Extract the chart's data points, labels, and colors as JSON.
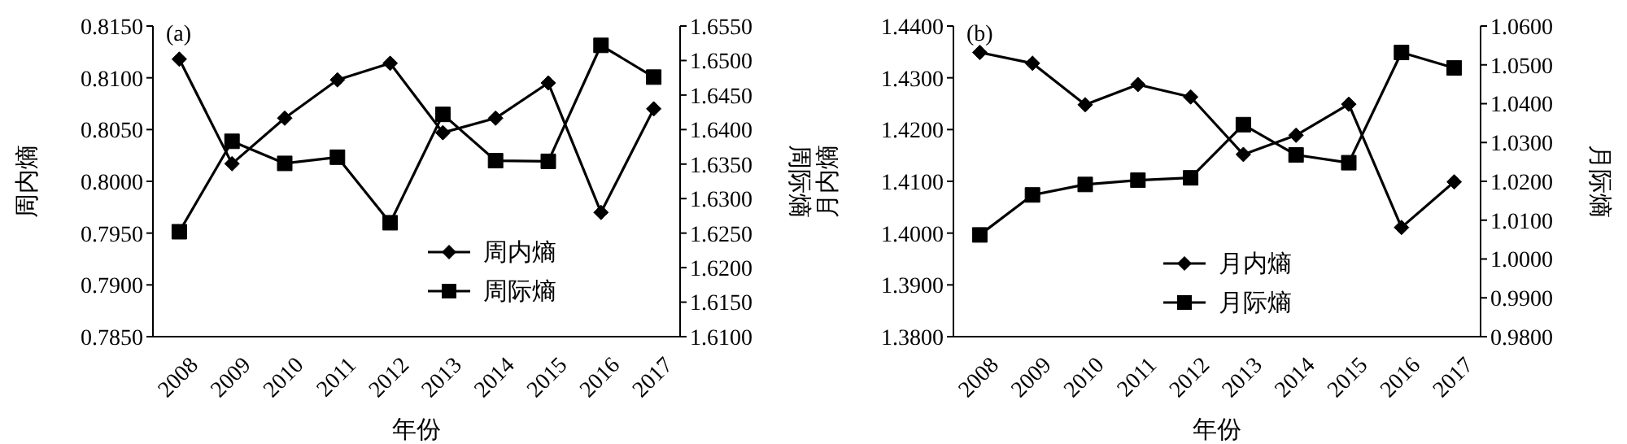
{
  "chart_data": [
    {
      "type": "line",
      "annotations": [
        "(a)"
      ],
      "xlabel": "年份",
      "ylabel": "周内熵",
      "y2label": "周际熵",
      "categories": [
        "2008",
        "2009",
        "2010",
        "2011",
        "2012",
        "2013",
        "2014",
        "2015",
        "2016",
        "2017"
      ],
      "series": [
        {
          "name": "周内熵",
          "color": "#000000",
          "marker": "diamond",
          "values": [
            0.8118,
            0.8017,
            0.8061,
            0.8098,
            0.8114,
            0.8047,
            0.8061,
            0.8095,
            0.797,
            0.807
          ]
        },
        {
          "name": "周际熵",
          "color": "#000000",
          "marker": "square",
          "axis": "y2",
          "values": [
            1.6252,
            1.6383,
            1.6351,
            1.636,
            1.6265,
            1.6422,
            1.6355,
            1.6354,
            1.6522,
            1.6476
          ]
        }
      ],
      "ylim": [
        0.785,
        0.815
      ],
      "yticks": [
        {
          "value": 0.785,
          "label": "0.7850"
        },
        {
          "value": 0.79,
          "label": "0.7900"
        },
        {
          "value": 0.795,
          "label": "0.7950"
        },
        {
          "value": 0.8,
          "label": "0.8000"
        },
        {
          "value": 0.805,
          "label": "0.8050"
        },
        {
          "value": 0.81,
          "label": "0.8100"
        },
        {
          "value": 0.815,
          "label": "0.8150"
        }
      ],
      "y2lim": [
        1.61,
        1.655
      ],
      "y2ticks": [
        {
          "value": 1.61,
          "label": "1.6100"
        },
        {
          "value": 1.615,
          "label": "1.6150"
        },
        {
          "value": 1.62,
          "label": "1.6200"
        },
        {
          "value": 1.625,
          "label": "1.6250"
        },
        {
          "value": 1.63,
          "label": "1.6300"
        },
        {
          "value": 1.635,
          "label": "1.6350"
        },
        {
          "value": 1.64,
          "label": "1.6400"
        },
        {
          "value": 1.645,
          "label": "1.6450"
        },
        {
          "value": 1.65,
          "label": "1.6500"
        },
        {
          "value": 1.655,
          "label": "1.6550"
        }
      ],
      "grid": false,
      "legend": "bottom right"
    },
    {
      "type": "line",
      "annotations": [
        "(b)"
      ],
      "xlabel": "年份",
      "ylabel": "月内熵",
      "y2label": "月际熵",
      "categories": [
        "2008",
        "2009",
        "2010",
        "2011",
        "2012",
        "2013",
        "2014",
        "2015",
        "2016",
        "2017"
      ],
      "series": [
        {
          "name": "月内熵",
          "color": "#000000",
          "marker": "diamond",
          "values": [
            1.4349,
            1.4328,
            1.4248,
            1.4287,
            1.4263,
            1.4152,
            1.4189,
            1.4249,
            1.4011,
            1.4099
          ]
        },
        {
          "name": "月际熵",
          "color": "#000000",
          "marker": "square",
          "axis": "y2",
          "values": [
            1.0062,
            1.0165,
            1.0192,
            1.0203,
            1.0209,
            1.0346,
            1.0268,
            1.0248,
            1.0532,
            1.0492
          ]
        }
      ],
      "ylim": [
        1.38,
        1.44
      ],
      "yticks": [
        {
          "value": 1.38,
          "label": "1.3800"
        },
        {
          "value": 1.39,
          "label": "1.3900"
        },
        {
          "value": 1.4,
          "label": "1.4000"
        },
        {
          "value": 1.41,
          "label": "1.4100"
        },
        {
          "value": 1.42,
          "label": "1.4200"
        },
        {
          "value": 1.43,
          "label": "1.4300"
        },
        {
          "value": 1.44,
          "label": "1.4400"
        }
      ],
      "y2lim": [
        0.98,
        1.06
      ],
      "y2ticks": [
        {
          "value": 0.98,
          "label": "0.9800"
        },
        {
          "value": 0.99,
          "label": "0.9900"
        },
        {
          "value": 1.0,
          "label": "1.0000"
        },
        {
          "value": 1.01,
          "label": "1.0100"
        },
        {
          "value": 1.02,
          "label": "1.0200"
        },
        {
          "value": 1.03,
          "label": "1.0300"
        },
        {
          "value": 1.04,
          "label": "1.0400"
        },
        {
          "value": 1.05,
          "label": "1.0500"
        },
        {
          "value": 1.06,
          "label": "1.0600"
        }
      ],
      "grid": false,
      "legend": "bottom"
    }
  ]
}
